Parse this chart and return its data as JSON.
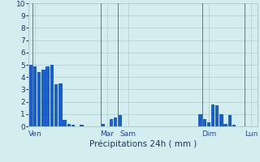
{
  "xlabel": "Précipitations 24h ( mm )",
  "background_color": "#d4eef0",
  "bar_color": "#1a5fcc",
  "ylim": [
    0,
    10
  ],
  "yticks": [
    0,
    1,
    2,
    3,
    4,
    5,
    6,
    7,
    8,
    9,
    10
  ],
  "grid_color": "#b0cece",
  "values": [
    5.0,
    4.9,
    4.4,
    4.6,
    4.9,
    5.0,
    3.4,
    3.5,
    0.5,
    0.2,
    0.15,
    0.0,
    0.15,
    0.0,
    0.0,
    0.0,
    0.0,
    0.2,
    0.0,
    0.6,
    0.7,
    0.9,
    0.0,
    0.0,
    0.0,
    0.0,
    0.0,
    0.0,
    0.0,
    0.0,
    0.0,
    0.0,
    0.0,
    0.0,
    0.0,
    0.0,
    0.0,
    0.0,
    0.0,
    0.0,
    1.0,
    0.6,
    0.3,
    1.8,
    1.7,
    1.0,
    0.2,
    0.9,
    0.15,
    0.0,
    0.0,
    0.0,
    0.0
  ],
  "day_labels": [
    "Ven",
    "Mar",
    "Sam",
    "Dim",
    "Lun"
  ],
  "day_tick_positions": [
    1,
    18,
    23,
    42,
    52
  ],
  "vline_positions": [
    0.5,
    16.5,
    20.5,
    40.5,
    50.5
  ],
  "xlim": [
    -0.5,
    53.5
  ]
}
